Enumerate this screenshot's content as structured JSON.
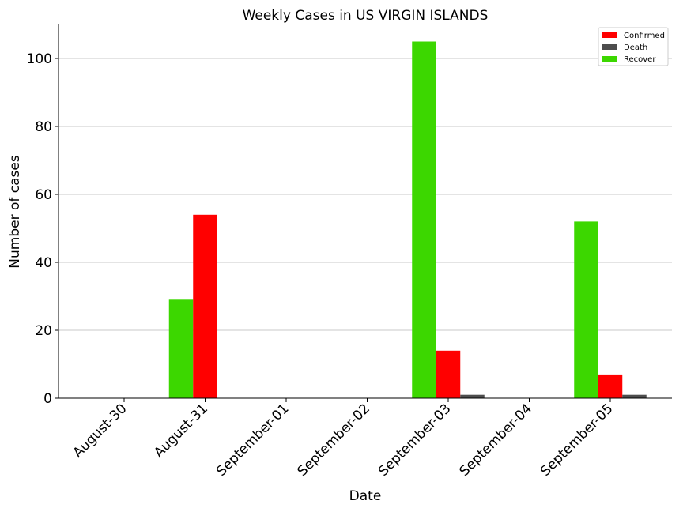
{
  "chart_data": {
    "type": "bar",
    "title": "Weekly Cases in US VIRGIN ISLANDS",
    "xlabel": "Date",
    "ylabel": "Number of cases",
    "categories": [
      "August-30",
      "August-31",
      "September-01",
      "September-02",
      "September-03",
      "September-04",
      "September-05"
    ],
    "series": [
      {
        "name": "Confirmed",
        "color": "#ff0000",
        "values": [
          0,
          54,
          0,
          0,
          14,
          0,
          7
        ]
      },
      {
        "name": "Death",
        "color": "#4d4d4d",
        "values": [
          0,
          0,
          0,
          0,
          1,
          0,
          1
        ]
      },
      {
        "name": "Recover",
        "color": "#3cd700",
        "values": [
          0,
          29,
          0,
          0,
          105,
          0,
          52
        ]
      }
    ],
    "ylim": [
      0,
      110
    ],
    "yticks": [
      0,
      20,
      40,
      60,
      80,
      100
    ],
    "grid": "horizontal",
    "legend_position": "top-right"
  }
}
